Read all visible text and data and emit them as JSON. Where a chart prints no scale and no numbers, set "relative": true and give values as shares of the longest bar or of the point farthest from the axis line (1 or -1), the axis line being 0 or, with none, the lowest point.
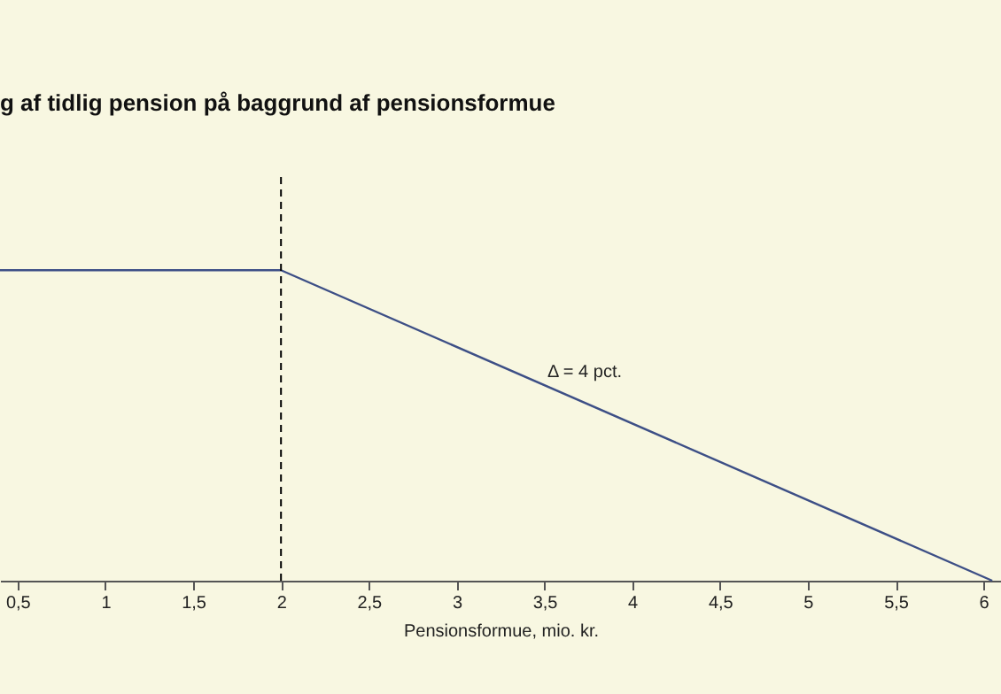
{
  "chart_data": {
    "type": "line",
    "title": "g af tidlig pension på baggrund af pensionsformue",
    "xlabel": "Pensionsformue, mio. kr.",
    "relative": true,
    "x": [
      0.4,
      2,
      6.05
    ],
    "series": [
      {
        "color": "#3d4f86",
        "values": [
          1,
          1,
          0
        ]
      }
    ],
    "xlim": [
      0.4,
      6.1
    ],
    "xticks": [
      {
        "value": 0.5,
        "label": "0,5"
      },
      1,
      {
        "value": 1.5,
        "label": "1,5"
      },
      2,
      {
        "value": 2.5,
        "label": "2,5"
      },
      3,
      {
        "value": 3.5,
        "label": "3,5"
      },
      4,
      {
        "value": 4.5,
        "label": "4,5"
      },
      5,
      {
        "value": 5.5,
        "label": "5,5"
      },
      6
    ],
    "ref_lines": [
      {
        "axis": "x",
        "value": 2,
        "line_style": "dashed",
        "color": "#000000"
      }
    ],
    "annotations": [
      "Δ = 4 pct."
    ],
    "grid": false,
    "marker": "none",
    "line_style": "solid"
  }
}
